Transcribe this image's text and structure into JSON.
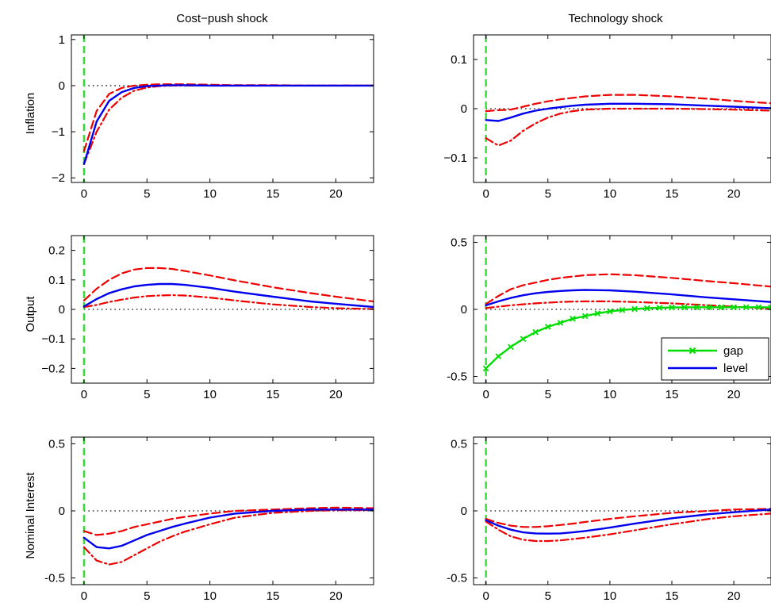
{
  "colors": {
    "median": "#0000ee",
    "band": "#ee0000",
    "gap": "#00dd00",
    "shock_line": "#33dd33",
    "zero_line": "#000000"
  },
  "columns": [
    "Cost−push shock",
    "Technology shock"
  ],
  "rows": [
    "Inflation",
    "Output",
    "Nominal Interest"
  ],
  "legend": {
    "gap": "gap",
    "level": "level"
  },
  "chart_data": [
    {
      "type": "line",
      "row": 0,
      "col": 0,
      "xlim": [
        -1,
        23
      ],
      "ylim": [
        -2.1,
        1.1
      ],
      "xticks": [
        0,
        5,
        10,
        15,
        20
      ],
      "yticks": [
        -2,
        -1,
        0,
        1
      ],
      "ytick_labels": [
        "−2",
        "−1",
        "0",
        "1"
      ],
      "x": [
        0,
        1,
        2,
        3,
        4,
        5,
        6,
        7,
        8,
        10,
        12,
        15,
        18,
        20,
        23
      ],
      "series": [
        {
          "role": "median",
          "values": [
            -1.7,
            -0.78,
            -0.33,
            -0.14,
            -0.05,
            -0.01,
            0.0,
            0.01,
            0.01,
            0.0,
            0.0,
            0.0,
            0.0,
            0.0,
            0.0
          ]
        },
        {
          "role": "upper",
          "values": [
            -1.42,
            -0.55,
            -0.18,
            -0.05,
            0.0,
            0.02,
            0.03,
            0.03,
            0.03,
            0.02,
            0.01,
            0.01,
            0.0,
            0.0,
            0.0
          ]
        },
        {
          "role": "lower",
          "values": [
            -1.7,
            -1.0,
            -0.52,
            -0.26,
            -0.11,
            -0.04,
            -0.01,
            0.0,
            0.0,
            0.0,
            0.0,
            0.0,
            0.0,
            0.0,
            0.0
          ]
        }
      ]
    },
    {
      "type": "line",
      "row": 0,
      "col": 1,
      "xlim": [
        -1,
        23
      ],
      "ylim": [
        -0.15,
        0.15
      ],
      "xticks": [
        0,
        5,
        10,
        15,
        20
      ],
      "yticks": [
        -0.1,
        0,
        0.1
      ],
      "ytick_labels": [
        "−0.1",
        "0",
        "0.1"
      ],
      "x": [
        0,
        1,
        2,
        3,
        4,
        5,
        6,
        7,
        8,
        10,
        12,
        15,
        18,
        20,
        23
      ],
      "series": [
        {
          "role": "median",
          "values": [
            -0.023,
            -0.025,
            -0.018,
            -0.01,
            -0.004,
            0.0,
            0.003,
            0.006,
            0.008,
            0.01,
            0.01,
            0.009,
            0.006,
            0.004,
            0.001
          ]
        },
        {
          "role": "upper",
          "values": [
            -0.005,
            -0.003,
            -0.002,
            0.004,
            0.01,
            0.015,
            0.019,
            0.022,
            0.025,
            0.028,
            0.028,
            0.025,
            0.02,
            0.016,
            0.011
          ]
        },
        {
          "role": "lower",
          "values": [
            -0.06,
            -0.075,
            -0.065,
            -0.045,
            -0.03,
            -0.018,
            -0.01,
            -0.005,
            -0.002,
            0.0,
            0.0,
            0.0,
            -0.001,
            -0.002,
            -0.004
          ]
        }
      ]
    },
    {
      "type": "line",
      "row": 1,
      "col": 0,
      "xlim": [
        -1,
        23
      ],
      "ylim": [
        -0.25,
        0.25
      ],
      "xticks": [
        0,
        5,
        10,
        15,
        20
      ],
      "yticks": [
        -0.2,
        -0.1,
        0,
        0.1,
        0.2
      ],
      "ytick_labels": [
        "−0.2",
        "−0.1",
        "0",
        "0.1",
        "0.2"
      ],
      "x": [
        0,
        1,
        2,
        3,
        4,
        5,
        6,
        7,
        8,
        10,
        12,
        15,
        18,
        20,
        23
      ],
      "series": [
        {
          "role": "median",
          "values": [
            0.01,
            0.035,
            0.055,
            0.068,
            0.078,
            0.083,
            0.086,
            0.086,
            0.083,
            0.073,
            0.06,
            0.043,
            0.027,
            0.019,
            0.008
          ]
        },
        {
          "role": "upper",
          "values": [
            0.03,
            0.07,
            0.1,
            0.122,
            0.135,
            0.14,
            0.14,
            0.137,
            0.13,
            0.115,
            0.098,
            0.075,
            0.055,
            0.043,
            0.027
          ]
        },
        {
          "role": "lower",
          "values": [
            0.008,
            0.015,
            0.025,
            0.033,
            0.04,
            0.045,
            0.047,
            0.048,
            0.047,
            0.04,
            0.03,
            0.017,
            0.008,
            0.004,
            0.001
          ]
        }
      ]
    },
    {
      "type": "line",
      "row": 1,
      "col": 1,
      "xlim": [
        -1,
        23
      ],
      "ylim": [
        -0.55,
        0.55
      ],
      "xticks": [
        0,
        5,
        10,
        15,
        20
      ],
      "yticks": [
        -0.5,
        0,
        0.5
      ],
      "ytick_labels": [
        "-0.5",
        "0",
        "0.5"
      ],
      "legend": "bottom-right",
      "x": [
        0,
        1,
        2,
        3,
        4,
        5,
        6,
        7,
        8,
        10,
        12,
        15,
        18,
        20,
        23
      ],
      "series": [
        {
          "role": "median",
          "name": "level",
          "values": [
            0.03,
            0.06,
            0.085,
            0.105,
            0.12,
            0.13,
            0.137,
            0.142,
            0.145,
            0.142,
            0.132,
            0.112,
            0.088,
            0.075,
            0.055
          ]
        },
        {
          "role": "upper",
          "values": [
            0.04,
            0.1,
            0.15,
            0.18,
            0.2,
            0.22,
            0.235,
            0.245,
            0.255,
            0.262,
            0.255,
            0.235,
            0.21,
            0.195,
            0.17
          ]
        },
        {
          "role": "lower",
          "values": [
            0.01,
            0.02,
            0.03,
            0.038,
            0.045,
            0.05,
            0.055,
            0.058,
            0.06,
            0.06,
            0.055,
            0.045,
            0.03,
            0.02,
            0.005
          ]
        },
        {
          "role": "gap",
          "name": "gap",
          "marker": "x",
          "x": [
            0,
            1,
            2,
            3,
            4,
            5,
            6,
            7,
            8,
            9,
            10,
            11,
            12,
            13,
            14,
            15,
            16,
            17,
            18,
            19,
            20,
            21,
            22,
            23
          ],
          "values": [
            -0.44,
            -0.35,
            -0.28,
            -0.22,
            -0.17,
            -0.13,
            -0.1,
            -0.07,
            -0.05,
            -0.03,
            -0.015,
            -0.005,
            0.003,
            0.008,
            0.012,
            0.014,
            0.015,
            0.016,
            0.016,
            0.016,
            0.016,
            0.016,
            0.016,
            0.015
          ]
        }
      ]
    },
    {
      "type": "line",
      "row": 2,
      "col": 0,
      "xlim": [
        -1,
        23
      ],
      "ylim": [
        -0.55,
        0.55
      ],
      "xticks": [
        0,
        5,
        10,
        15,
        20
      ],
      "yticks": [
        -0.5,
        0,
        0.5
      ],
      "ytick_labels": [
        "-0.5",
        "0",
        "0.5"
      ],
      "x": [
        0,
        1,
        2,
        3,
        4,
        5,
        6,
        7,
        8,
        10,
        12,
        15,
        18,
        20,
        23
      ],
      "series": [
        {
          "role": "median",
          "values": [
            -0.2,
            -0.27,
            -0.28,
            -0.26,
            -0.22,
            -0.18,
            -0.15,
            -0.12,
            -0.095,
            -0.05,
            -0.02,
            0.0,
            0.01,
            0.01,
            0.01
          ]
        },
        {
          "role": "upper",
          "values": [
            -0.15,
            -0.18,
            -0.17,
            -0.15,
            -0.12,
            -0.1,
            -0.08,
            -0.06,
            -0.045,
            -0.02,
            0.0,
            0.01,
            0.02,
            0.025,
            0.02
          ]
        },
        {
          "role": "lower",
          "values": [
            -0.27,
            -0.37,
            -0.4,
            -0.38,
            -0.33,
            -0.28,
            -0.23,
            -0.19,
            -0.155,
            -0.1,
            -0.05,
            -0.015,
            0.0,
            0.005,
            0.005
          ]
        }
      ]
    },
    {
      "type": "line",
      "row": 2,
      "col": 1,
      "xlim": [
        -1,
        23
      ],
      "ylim": [
        -0.55,
        0.55
      ],
      "xticks": [
        0,
        5,
        10,
        15,
        20
      ],
      "yticks": [
        -0.5,
        0,
        0.5
      ],
      "ytick_labels": [
        "-0.5",
        "0",
        "0.5"
      ],
      "x": [
        0,
        1,
        2,
        3,
        4,
        5,
        6,
        7,
        8,
        10,
        12,
        15,
        18,
        20,
        23
      ],
      "series": [
        {
          "role": "median",
          "values": [
            -0.07,
            -0.11,
            -0.14,
            -0.16,
            -0.168,
            -0.17,
            -0.168,
            -0.16,
            -0.15,
            -0.125,
            -0.095,
            -0.055,
            -0.025,
            -0.01,
            0.01
          ]
        },
        {
          "role": "upper",
          "values": [
            -0.06,
            -0.09,
            -0.11,
            -0.12,
            -0.12,
            -0.115,
            -0.105,
            -0.095,
            -0.083,
            -0.06,
            -0.04,
            -0.015,
            0.0,
            0.01,
            0.015
          ]
        },
        {
          "role": "lower",
          "values": [
            -0.08,
            -0.14,
            -0.19,
            -0.215,
            -0.225,
            -0.225,
            -0.22,
            -0.21,
            -0.2,
            -0.175,
            -0.145,
            -0.1,
            -0.06,
            -0.04,
            -0.02
          ]
        }
      ]
    }
  ]
}
